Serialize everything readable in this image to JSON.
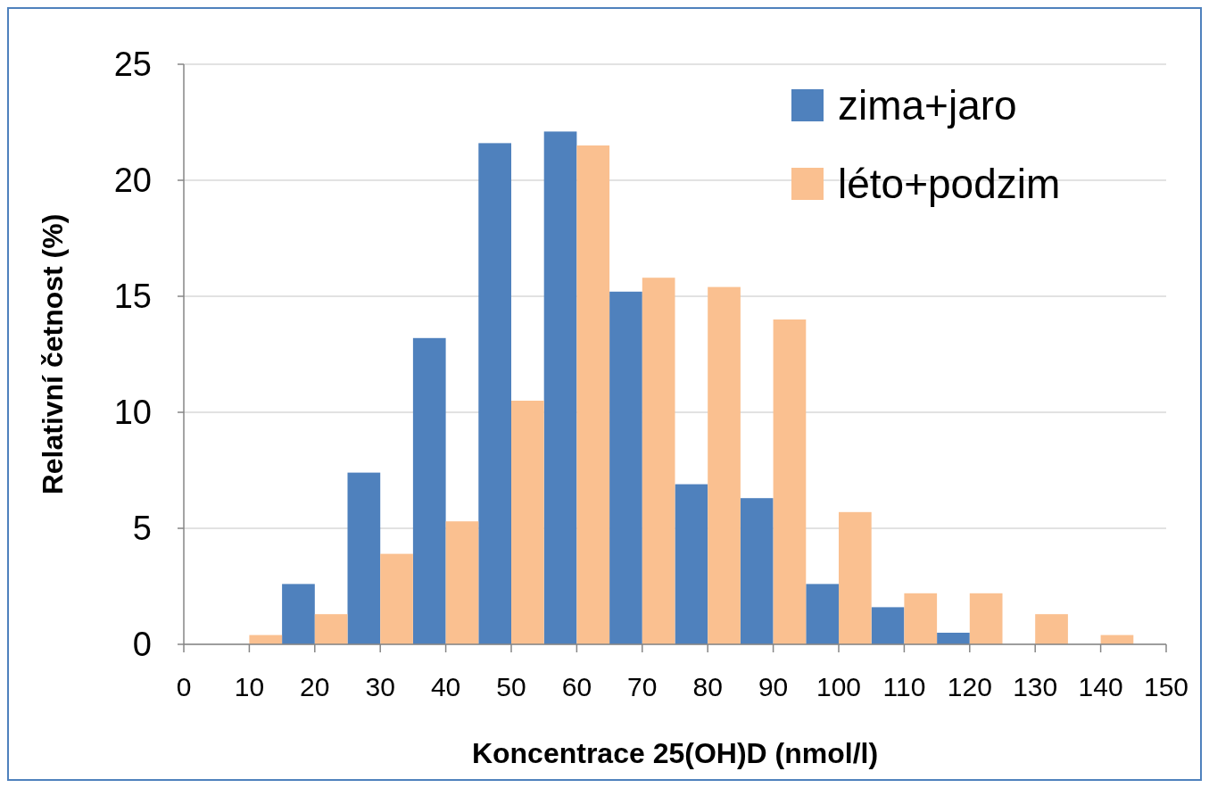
{
  "chart_data": {
    "type": "bar",
    "xlabel": "Koncentrace 25(OH)D (nmol/l)",
    "ylabel": "Relativní četnost (%)",
    "xlim": [
      0,
      150
    ],
    "xticks": [
      0,
      10,
      20,
      30,
      40,
      50,
      60,
      70,
      80,
      90,
      100,
      110,
      120,
      130,
      140,
      150
    ],
    "ylim": [
      0,
      25
    ],
    "yticks": [
      0,
      5,
      10,
      15,
      20,
      25
    ],
    "grid": "y",
    "legend": "top right",
    "series": [
      {
        "name": "zima+jaro",
        "color": "#4f81bd",
        "x": [
          17.5,
          27.5,
          37.5,
          47.5,
          57.5,
          67.5,
          77.5,
          87.5,
          97.5,
          107.5,
          117.5
        ],
        "values": [
          2.6,
          7.4,
          13.2,
          21.6,
          22.1,
          15.2,
          6.9,
          6.3,
          2.6,
          1.6,
          0.5
        ]
      },
      {
        "name": "léto+podzim",
        "color": "#fac090",
        "x": [
          12.5,
          22.5,
          32.5,
          42.5,
          52.5,
          62.5,
          72.5,
          82.5,
          92.5,
          102.5,
          112.5,
          122.5,
          132.5,
          142.5
        ],
        "values": [
          0.4,
          1.3,
          3.9,
          5.3,
          10.5,
          21.5,
          15.8,
          15.4,
          14.0,
          5.7,
          2.2,
          2.2,
          1.3,
          0.4
        ]
      }
    ]
  }
}
